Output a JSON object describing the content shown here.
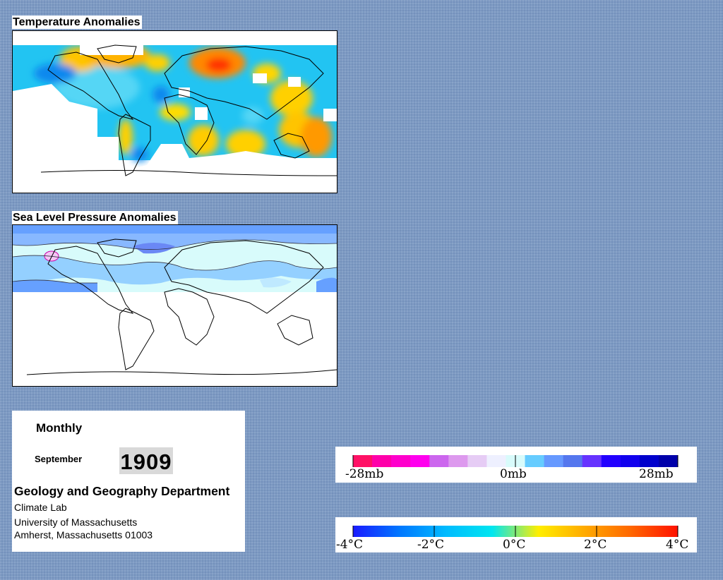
{
  "temperature_map": {
    "title": "Temperature Anomalies"
  },
  "pressure_map": {
    "title": "Sea Level Pressure Anomalies"
  },
  "info": {
    "period": "Monthly",
    "month": "September",
    "year": "1909",
    "department": "Geology and Geography Department",
    "lab": "Climate Lab",
    "university": "University of Massachusetts",
    "address": "Amherst, Massachusetts 01003"
  },
  "pressure_legend": {
    "labels": [
      "-28mb",
      "0mb",
      "28mb"
    ],
    "colors": [
      "#ff1166",
      "#ff00aa",
      "#ff00cc",
      "#ff00ee",
      "#cc66ee",
      "#dd99ee",
      "#e6ccf5",
      "#eef0ff",
      "#d8fbfb",
      "#66ccff",
      "#6699ff",
      "#5577ee",
      "#6633ff",
      "#2200ff",
      "#1100ee",
      "#0000cc",
      "#0000aa"
    ]
  },
  "temperature_legend": {
    "labels": [
      "-4°C",
      "-2°C",
      "0°C",
      "2°C",
      "4°C"
    ],
    "gradient": [
      "#1a1aff",
      "#0077ff",
      "#00bbff",
      "#00e6f0",
      "#ffee00",
      "#ffaa00",
      "#ff6600",
      "#ff1100"
    ]
  }
}
